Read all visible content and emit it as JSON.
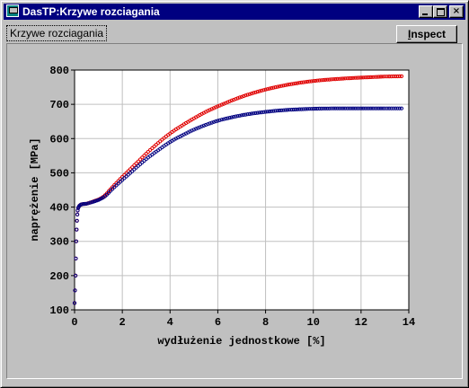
{
  "window": {
    "title": "DasTP:Krzywe rozciagania",
    "minimize_icon": "minimize-icon",
    "maximize_icon": "maximize-icon",
    "close_glyph": "×"
  },
  "tab": {
    "label": "Krzywe rozciagania"
  },
  "toolbar": {
    "inspect_label_prefix": "I",
    "inspect_label_rest": "nspect"
  },
  "colors": {
    "plot_bg": "#ffffff",
    "grid": "#c0c0c0",
    "series_red": "#e00000",
    "series_blue": "#000080"
  },
  "chart_data": {
    "type": "scatter",
    "title": "",
    "xlabel": "wydłużenie jednostkowe [%]",
    "ylabel": "naprężenie [MPa]",
    "xlim": [
      0,
      14
    ],
    "ylim": [
      100,
      800
    ],
    "xticks": [
      0,
      2,
      4,
      6,
      8,
      10,
      12,
      14
    ],
    "yticks": [
      100,
      200,
      300,
      400,
      500,
      600,
      700,
      800
    ],
    "grid": true,
    "legend": "none",
    "series": [
      {
        "color": "#e00000",
        "x": [
          0.0,
          0.04,
          0.07,
          0.1,
          0.13,
          0.17,
          0.22,
          0.3,
          0.5,
          0.8,
          1.0,
          1.2,
          1.35,
          1.5,
          2.0,
          2.5,
          3.0,
          3.5,
          4.0,
          4.5,
          5.0,
          5.5,
          6.0,
          7.0,
          8.0,
          9.0,
          10.0,
          11.0,
          12.0,
          13.0,
          13.7
        ],
        "y": [
          120,
          200,
          300,
          360,
          390,
          400,
          405,
          408,
          410,
          417,
          422,
          430,
          440,
          452,
          488,
          522,
          556,
          587,
          615,
          638,
          659,
          678,
          694,
          722,
          743,
          758,
          768,
          774,
          778,
          781,
          782
        ]
      },
      {
        "color": "#000080",
        "x": [
          0.0,
          0.04,
          0.07,
          0.1,
          0.13,
          0.17,
          0.22,
          0.3,
          0.5,
          0.8,
          1.0,
          1.2,
          1.35,
          1.5,
          2.0,
          2.5,
          3.0,
          3.5,
          4.0,
          4.5,
          5.0,
          5.5,
          6.0,
          7.0,
          8.0,
          9.0,
          10.0,
          11.0,
          12.0,
          13.0,
          13.7
        ],
        "y": [
          120,
          200,
          300,
          360,
          390,
          400,
          405,
          408,
          410,
          416,
          421,
          428,
          436,
          447,
          479,
          510,
          540,
          566,
          590,
          609,
          626,
          640,
          652,
          668,
          678,
          684,
          687,
          688,
          688,
          688,
          688
        ]
      }
    ]
  }
}
